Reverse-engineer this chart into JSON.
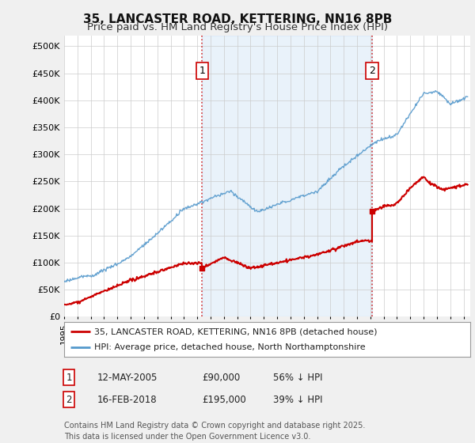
{
  "title": "35, LANCASTER ROAD, KETTERING, NN16 8PB",
  "subtitle": "Price paid vs. HM Land Registry's House Price Index (HPI)",
  "ylabel_ticks": [
    "£0",
    "£50K",
    "£100K",
    "£150K",
    "£200K",
    "£250K",
    "£300K",
    "£350K",
    "£400K",
    "£450K",
    "£500K"
  ],
  "ytick_vals": [
    0,
    50000,
    100000,
    150000,
    200000,
    250000,
    300000,
    350000,
    400000,
    450000,
    500000
  ],
  "ylim": [
    0,
    520000
  ],
  "xlim_start": 1995.0,
  "xlim_end": 2025.5,
  "background_color": "#f0f0f0",
  "plot_background": "#ffffff",
  "shade_color": "#ddeeff",
  "red_line_color": "#cc0000",
  "blue_line_color": "#5599cc",
  "vline_color": "#cc0000",
  "vline_style": ":",
  "marker1_x": 2005.36,
  "marker1_y": 90000,
  "marker2_x": 2018.12,
  "marker2_y": 195000,
  "marker2_before_y": 140000,
  "legend_label1": "35, LANCASTER ROAD, KETTERING, NN16 8PB (detached house)",
  "legend_label2": "HPI: Average price, detached house, North Northamptonshire",
  "table_row1": [
    "1",
    "12-MAY-2005",
    "£90,000",
    "56% ↓ HPI"
  ],
  "table_row2": [
    "2",
    "16-FEB-2018",
    "£195,000",
    "39% ↓ HPI"
  ],
  "footnote": "Contains HM Land Registry data © Crown copyright and database right 2025.\nThis data is licensed under the Open Government Licence v3.0.",
  "title_fontsize": 11,
  "subtitle_fontsize": 9.5,
  "tick_fontsize": 8,
  "legend_fontsize": 8,
  "table_fontsize": 8.5,
  "footnote_fontsize": 7
}
